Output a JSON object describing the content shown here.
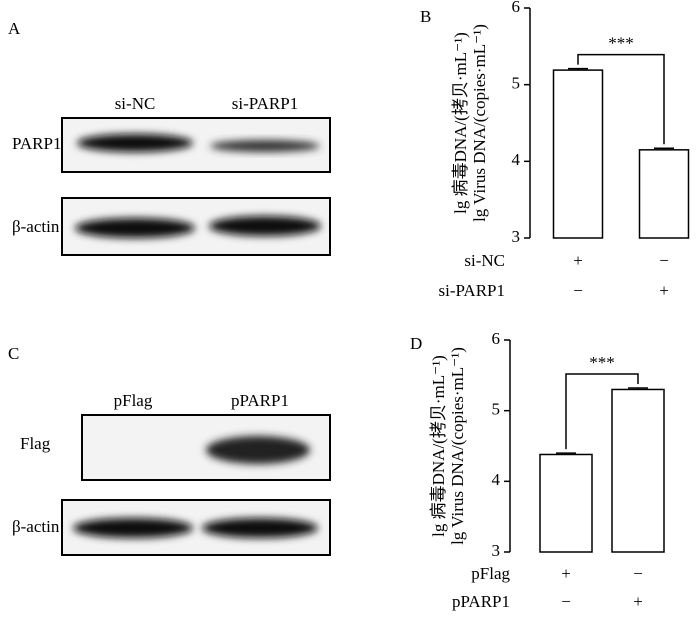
{
  "blots": [
    {
      "label": "A",
      "lanes": [
        "si-NC",
        "si-PARP1"
      ],
      "rows": [
        "PARP1",
        "β-actin"
      ]
    },
    {
      "label": "C",
      "lanes": [
        "pFlag",
        "pPARP1"
      ],
      "rows": [
        "Flag",
        "β-actin"
      ]
    }
  ],
  "chart_data": [
    {
      "type": "bar",
      "label": "B",
      "ylabel": [
        "lg 病毒DNA/(拷贝·mL⁻¹)",
        "lg Virus DNA/(copies·mL⁻¹)"
      ],
      "categories": [
        null,
        null
      ],
      "values": [
        5.19,
        4.15
      ],
      "errors": [
        0.02,
        0.02
      ],
      "conditions": [
        {
          "name": "si-NC",
          "signs": [
            "+",
            "−"
          ]
        },
        {
          "name": "si-PARP1",
          "signs": [
            "−",
            "+"
          ]
        }
      ],
      "significance": "***",
      "ylim": [
        3,
        6
      ],
      "yticks": [
        3,
        4,
        5,
        6
      ]
    },
    {
      "type": "bar",
      "label": "D",
      "ylabel": [
        "lg 病毒DNA/(拷贝·mL⁻¹)",
        "lg Virus DNA/(copies·mL⁻¹)"
      ],
      "categories": [
        null,
        null
      ],
      "values": [
        4.38,
        5.3
      ],
      "errors": [
        0.02,
        0.02
      ],
      "conditions": [
        {
          "name": "pFlag",
          "signs": [
            "+",
            "−"
          ]
        },
        {
          "name": "pPARP1",
          "signs": [
            "−",
            "+"
          ]
        }
      ],
      "significance": "***",
      "ylim": [
        3,
        6
      ],
      "yticks": [
        3,
        4,
        5,
        6
      ]
    }
  ]
}
